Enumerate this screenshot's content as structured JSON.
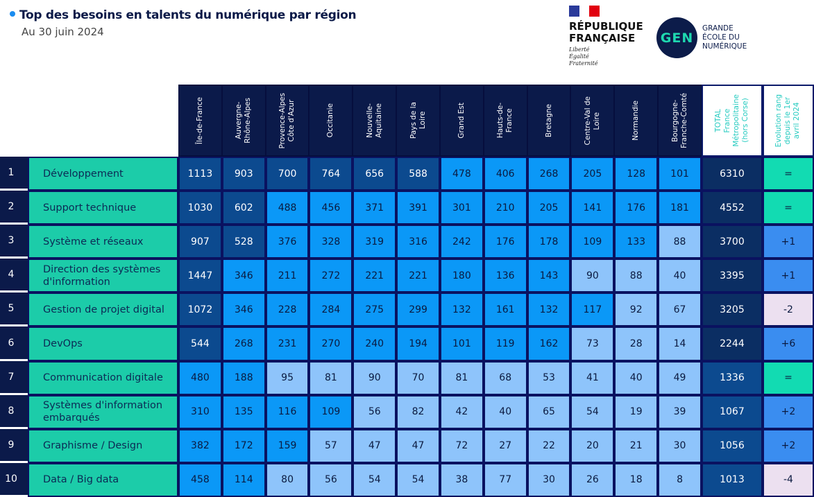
{
  "header": {
    "title": "Top des besoins en talents du numérique par région",
    "subtitle": "Au 30 juin 2024"
  },
  "logos": {
    "republique": {
      "name_line1": "RÉPUBLIQUE",
      "name_line2": "FRANÇAISE",
      "motto": [
        "Liberté",
        "Égalité",
        "Fraternité"
      ]
    },
    "gen": {
      "mark": "GEN",
      "text": [
        "GRANDE",
        "ÉCOLE DU",
        "NUMÉRIQUE"
      ]
    }
  },
  "colors": {
    "high": "#0c4a8f",
    "mid": "#0b98f7",
    "low": "#8ec4fb",
    "total_high": "#0b2e63",
    "total_mid": "#0c4a8f",
    "evo_equal": "#12dbb2",
    "evo_up": "#3a8df0",
    "evo_down": "#ece0f0"
  },
  "chart_data": {
    "type": "table",
    "title": "Top des besoins en talents du numérique par région",
    "columns": [
      "Île-de-France",
      "Auvergne-\nRhône-Alpes",
      "Provence-Alpes\nCôte d'Azur",
      "Occitanie",
      "Nouvelle-\nAquitaine",
      "Pays de la\nLoire",
      "Grand Est",
      "Hauts-de-\nFrance",
      "Bretagne",
      "Centre-Val de\nLoire",
      "Normandie",
      "Bourgogne-\nFranche-Comté"
    ],
    "total_header": "TOTAL\nFrance\nMétropolitaine\n(hors Corse)",
    "evolution_header": "Evolution rang\ndepuis le 1er\navril 2024",
    "rows": [
      {
        "rank": "1",
        "label": "Développement",
        "values": [
          1113,
          903,
          700,
          764,
          656,
          588,
          478,
          406,
          268,
          205,
          128,
          101
        ],
        "total": 6310,
        "evolution": "="
      },
      {
        "rank": "2",
        "label": "Support technique",
        "values": [
          1030,
          602,
          488,
          456,
          371,
          391,
          301,
          210,
          205,
          141,
          176,
          181
        ],
        "total": 4552,
        "evolution": "="
      },
      {
        "rank": "3",
        "label": "Système et réseaux",
        "values": [
          907,
          528,
          376,
          328,
          319,
          316,
          242,
          176,
          178,
          109,
          133,
          88
        ],
        "total": 3700,
        "evolution": "+1"
      },
      {
        "rank": "4",
        "label": "Direction des systèmes d'information",
        "values": [
          1447,
          346,
          211,
          272,
          221,
          221,
          180,
          136,
          143,
          90,
          88,
          40
        ],
        "total": 3395,
        "evolution": "+1"
      },
      {
        "rank": "5",
        "label": "Gestion de projet digital",
        "values": [
          1072,
          346,
          228,
          284,
          275,
          299,
          132,
          161,
          132,
          117,
          92,
          67
        ],
        "total": 3205,
        "evolution": "-2"
      },
      {
        "rank": "6",
        "label": "DevOps",
        "values": [
          544,
          268,
          231,
          270,
          240,
          194,
          101,
          119,
          162,
          73,
          28,
          14
        ],
        "total": 2244,
        "evolution": "+6"
      },
      {
        "rank": "7",
        "label": "Communication digitale",
        "values": [
          480,
          188,
          95,
          81,
          90,
          70,
          81,
          68,
          53,
          41,
          40,
          49
        ],
        "total": 1336,
        "evolution": "="
      },
      {
        "rank": "8",
        "label": "Systèmes d'information embarqués",
        "values": [
          310,
          135,
          116,
          109,
          56,
          82,
          42,
          40,
          65,
          54,
          19,
          39
        ],
        "total": 1067,
        "evolution": "+2"
      },
      {
        "rank": "9",
        "label": "Graphisme / Design",
        "values": [
          382,
          172,
          159,
          57,
          47,
          47,
          72,
          27,
          22,
          20,
          21,
          30
        ],
        "total": 1056,
        "evolution": "+2"
      },
      {
        "rank": "10",
        "label": "Data / Big data",
        "values": [
          458,
          114,
          80,
          56,
          54,
          54,
          38,
          77,
          30,
          26,
          18,
          8
        ],
        "total": 1013,
        "evolution": "-4"
      }
    ]
  }
}
